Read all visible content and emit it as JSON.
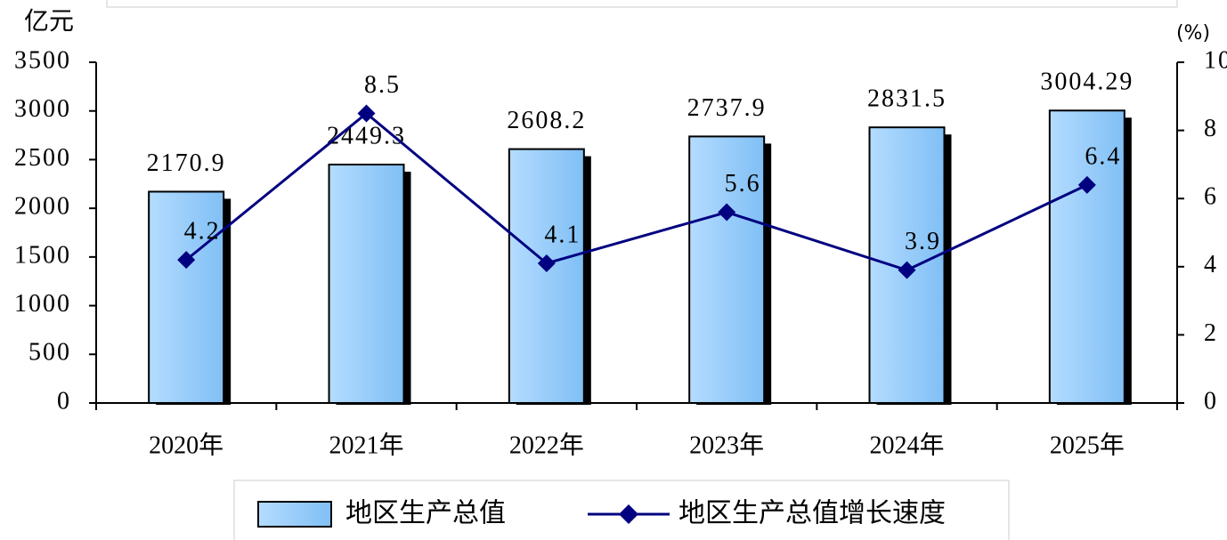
{
  "chart_data": {
    "type": "combo",
    "y_unit_label": "亿元",
    "y2_unit_label": "(%)",
    "categories": [
      "2020年",
      "2021年",
      "2022年",
      "2023年",
      "2024年",
      "2025年"
    ],
    "series": [
      {
        "name": "地区生产总值",
        "type": "bar",
        "color": "#99ccff",
        "values": [
          2170.9,
          2449.3,
          2608.2,
          2737.9,
          2831.5,
          3004.29
        ]
      },
      {
        "name": "地区生产总值增长速度",
        "type": "line",
        "axis": "y2",
        "color": "#000080",
        "values": [
          4.2,
          8.5,
          4.1,
          5.6,
          3.9,
          6.4
        ]
      }
    ],
    "ylim": [
      0,
      3500
    ],
    "yticks": [
      0,
      500,
      1000,
      1500,
      2000,
      2500,
      3000,
      3500
    ],
    "y2lim": [
      0,
      10
    ],
    "y2ticks": [
      0,
      2,
      4,
      6,
      8,
      10
    ]
  }
}
